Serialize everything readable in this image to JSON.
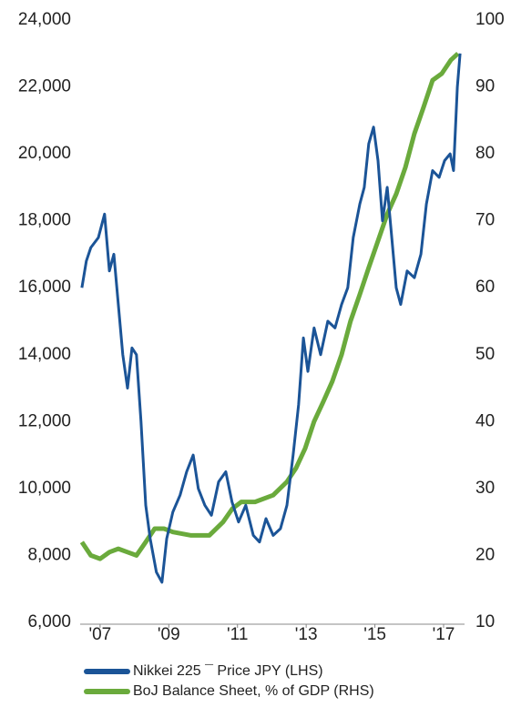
{
  "chart_data": {
    "type": "line",
    "xlim": [
      2006.42,
      2017.61
    ],
    "xticks": [
      {
        "value": 2007,
        "label": "'07"
      },
      {
        "value": 2009,
        "label": "'09"
      },
      {
        "value": 2011,
        "label": "'11"
      },
      {
        "value": 2013,
        "label": "'13"
      },
      {
        "value": 2015,
        "label": "'15"
      },
      {
        "value": 2017,
        "label": "'17"
      }
    ],
    "ylim": [
      6000,
      24000
    ],
    "yticks": [
      {
        "value": 6000,
        "label": "6,000"
      },
      {
        "value": 8000,
        "label": "8,000"
      },
      {
        "value": 10000,
        "label": "10,000"
      },
      {
        "value": 12000,
        "label": "12,000"
      },
      {
        "value": 14000,
        "label": "14,000"
      },
      {
        "value": 16000,
        "label": "16,000"
      },
      {
        "value": 18000,
        "label": "18,000"
      },
      {
        "value": 20000,
        "label": "20,000"
      },
      {
        "value": 22000,
        "label": "22,000"
      },
      {
        "value": 24000,
        "label": "24,000"
      }
    ],
    "y2lim": [
      10,
      100
    ],
    "y2ticks": [
      10,
      20,
      30,
      40,
      50,
      60,
      70,
      80,
      90,
      100
    ],
    "series": [
      {
        "name": "Nikkei 225 ¯ Price JPY (LHS)",
        "color": "#1b5497",
        "axis": "y",
        "x": [
          2006.47,
          2006.6,
          2006.73,
          2006.95,
          2007.13,
          2007.27,
          2007.4,
          2007.53,
          2007.66,
          2007.8,
          2007.93,
          2008.06,
          2008.19,
          2008.33,
          2008.46,
          2008.64,
          2008.8,
          2008.94,
          2009.12,
          2009.33,
          2009.52,
          2009.71,
          2009.86,
          2010.05,
          2010.24,
          2010.45,
          2010.66,
          2010.84,
          2011.03,
          2011.24,
          2011.46,
          2011.64,
          2011.83,
          2012.04,
          2012.25,
          2012.44,
          2012.62,
          2012.78,
          2012.92,
          2013.05,
          2013.23,
          2013.42,
          2013.63,
          2013.84,
          2014.03,
          2014.21,
          2014.37,
          2014.56,
          2014.69,
          2014.82,
          2014.96,
          2015.09,
          2015.22,
          2015.36,
          2015.49,
          2015.62,
          2015.75,
          2015.94,
          2016.15,
          2016.34,
          2016.5,
          2016.68,
          2016.87,
          2017.03,
          2017.19,
          2017.29,
          2017.4,
          2017.48
        ],
        "values": [
          16000,
          16800,
          17200,
          17500,
          18200,
          16500,
          17000,
          15500,
          14000,
          13000,
          14200,
          14000,
          12000,
          9500,
          8500,
          7500,
          7200,
          8500,
          9300,
          9800,
          10500,
          11000,
          10000,
          9500,
          9200,
          10200,
          10500,
          9600,
          9000,
          9500,
          8600,
          8400,
          9100,
          8600,
          8800,
          9500,
          11000,
          12500,
          14500,
          13500,
          14800,
          14000,
          15000,
          14800,
          15500,
          16000,
          17500,
          18500,
          19000,
          20300,
          20800,
          19800,
          18000,
          19000,
          17500,
          16000,
          15500,
          16500,
          16300,
          17000,
          18500,
          19500,
          19300,
          19800,
          20000,
          19500,
          22000,
          23000
        ]
      },
      {
        "name": "BoJ Balance Sheet, % of GDP (RHS)",
        "color": "#6aaa3c",
        "axis": "y2",
        "x": [
          2006.47,
          2006.73,
          2007.0,
          2007.27,
          2007.53,
          2007.8,
          2008.06,
          2008.33,
          2008.59,
          2008.86,
          2009.12,
          2009.65,
          2010.18,
          2010.58,
          2010.85,
          2011.11,
          2011.51,
          2012.04,
          2012.44,
          2012.7,
          2012.97,
          2013.23,
          2013.5,
          2013.76,
          2014.03,
          2014.29,
          2014.56,
          2014.82,
          2015.09,
          2015.36,
          2015.62,
          2015.89,
          2016.15,
          2016.42,
          2016.68,
          2016.95,
          2017.21,
          2017.42
        ],
        "values": [
          22,
          20,
          19.5,
          20.5,
          21,
          20.5,
          20,
          22,
          24,
          24,
          23.5,
          23,
          23,
          25,
          27,
          28,
          28,
          29,
          31,
          33,
          36,
          40,
          43,
          46,
          50,
          55,
          59,
          63,
          67,
          71,
          74,
          78,
          83,
          87,
          91,
          92,
          94,
          95
        ]
      }
    ]
  }
}
